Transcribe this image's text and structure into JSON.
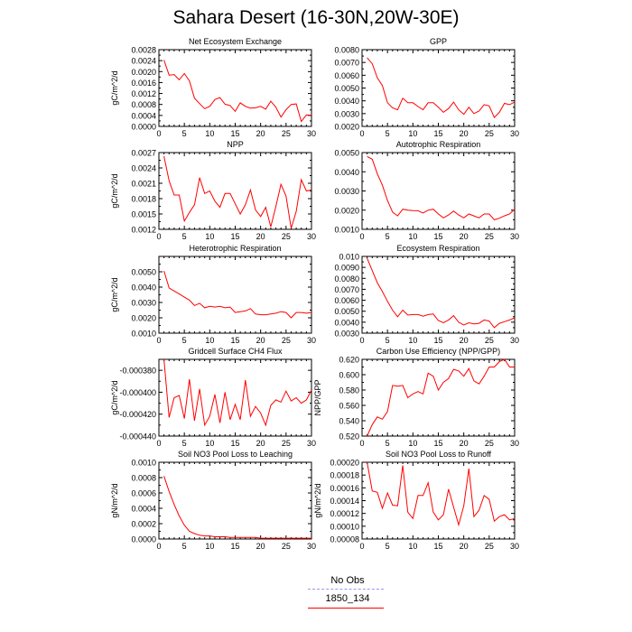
{
  "title": "Sahara Desert (16-30N,20W-30E)",
  "legend": {
    "items": [
      {
        "label": "No Obs",
        "color": "#9999ee",
        "style": "dashed"
      },
      {
        "label": "1850_134",
        "color": "#ff0000",
        "style": "solid"
      }
    ]
  },
  "chart_data": [
    {
      "type": "line",
      "title": "Net Ecosystem Exchange",
      "ylabel": "gC/m^2/d",
      "xlim": [
        0,
        30
      ],
      "xticks": [
        0,
        5,
        10,
        15,
        20,
        25,
        30
      ],
      "ylim": [
        0.0,
        0.0028
      ],
      "yticks": [
        0.0,
        0.0004,
        0.0008,
        0.0012,
        0.0016,
        0.002,
        0.0024,
        0.0028
      ],
      "ytick_labels": [
        "0.0000",
        "0.0004",
        "0.0008",
        "0.0012",
        "0.0016",
        "0.0020",
        "0.0024",
        "0.0028"
      ],
      "color": "#ff0000",
      "series": [
        {
          "name": "1850_134",
          "x": [
            1,
            2,
            3,
            4,
            5,
            6,
            7,
            8,
            9,
            10,
            11,
            12,
            13,
            14,
            15,
            16,
            17,
            18,
            19,
            20,
            21,
            22,
            23,
            24,
            25,
            26,
            27,
            28,
            29,
            30
          ],
          "values": [
            0.00242,
            0.00187,
            0.00189,
            0.0017,
            0.00193,
            0.00166,
            0.00103,
            0.00083,
            0.00065,
            0.00073,
            0.00098,
            0.00105,
            0.00081,
            0.00076,
            0.00055,
            0.00086,
            0.00073,
            0.00067,
            0.00068,
            0.00073,
            0.00063,
            0.00092,
            0.0007,
            0.00034,
            0.00061,
            0.0008,
            0.00082,
            0.00018,
            0.00042,
            0.00041
          ]
        }
      ]
    },
    {
      "type": "line",
      "title": "GPP",
      "ylabel": "",
      "xlim": [
        0,
        30
      ],
      "xticks": [
        0,
        5,
        10,
        15,
        20,
        25,
        30
      ],
      "ylim": [
        0.002,
        0.008
      ],
      "yticks": [
        0.002,
        0.003,
        0.004,
        0.005,
        0.006,
        0.007,
        0.008
      ],
      "ytick_labels": [
        "0.0020",
        "0.0030",
        "0.0040",
        "0.0050",
        "0.0060",
        "0.0070",
        "0.0080"
      ],
      "color": "#ff0000",
      "series": [
        {
          "name": "1850_134",
          "x": [
            1,
            2,
            3,
            4,
            5,
            6,
            7,
            8,
            9,
            10,
            11,
            12,
            13,
            14,
            15,
            16,
            17,
            18,
            19,
            20,
            21,
            22,
            23,
            24,
            25,
            26,
            27,
            28,
            29,
            30
          ],
          "values": [
            0.00737,
            0.0069,
            0.0058,
            0.0052,
            0.00385,
            0.00345,
            0.0033,
            0.0042,
            0.00385,
            0.00385,
            0.00355,
            0.0033,
            0.00385,
            0.00385,
            0.0035,
            0.0031,
            0.0034,
            0.0039,
            0.0033,
            0.00295,
            0.0035,
            0.003,
            0.0032,
            0.0037,
            0.0036,
            0.0027,
            0.0031,
            0.0038,
            0.0037,
            0.0039
          ]
        }
      ]
    },
    {
      "type": "line",
      "title": "NPP",
      "ylabel": "gC/m^2/d",
      "xlim": [
        0,
        30
      ],
      "xticks": [
        0,
        5,
        10,
        15,
        20,
        25,
        30
      ],
      "ylim": [
        0.0012,
        0.0027
      ],
      "yticks": [
        0.0012,
        0.0015,
        0.0018,
        0.0021,
        0.0024,
        0.0027
      ],
      "ytick_labels": [
        "0.0012",
        "0.0015",
        "0.0018",
        "0.0021",
        "0.0024",
        "0.0027"
      ],
      "color": "#ff0000",
      "series": [
        {
          "name": "1850_134",
          "x": [
            1,
            2,
            3,
            4,
            5,
            6,
            7,
            8,
            9,
            10,
            11,
            12,
            13,
            14,
            15,
            16,
            17,
            18,
            19,
            20,
            21,
            22,
            23,
            24,
            25,
            26,
            27,
            28,
            29,
            30
          ],
          "values": [
            0.00263,
            0.00215,
            0.00187,
            0.00187,
            0.00136,
            0.00153,
            0.00168,
            0.00221,
            0.0019,
            0.00195,
            0.00175,
            0.00163,
            0.0019,
            0.0019,
            0.0017,
            0.0015,
            0.00168,
            0.00197,
            0.00158,
            0.00145,
            0.00163,
            0.00125,
            0.00165,
            0.00208,
            0.00185,
            0.00122,
            0.00155,
            0.00217,
            0.00195,
            0.00197
          ]
        }
      ]
    },
    {
      "type": "line",
      "title": "Autotrophic Respiration",
      "ylabel": "",
      "xlim": [
        0,
        30
      ],
      "xticks": [
        0,
        5,
        10,
        15,
        20,
        25,
        30
      ],
      "ylim": [
        0.001,
        0.005
      ],
      "yticks": [
        0.001,
        0.002,
        0.003,
        0.004,
        0.005
      ],
      "ytick_labels": [
        "0.0010",
        "0.0020",
        "0.0030",
        "0.0040",
        "0.0050"
      ],
      "color": "#ff0000",
      "series": [
        {
          "name": "1850_134",
          "x": [
            1,
            2,
            3,
            4,
            5,
            6,
            7,
            8,
            9,
            10,
            11,
            12,
            13,
            14,
            15,
            16,
            17,
            18,
            19,
            20,
            21,
            22,
            23,
            24,
            25,
            26,
            27,
            28,
            29,
            30
          ],
          "values": [
            0.0048,
            0.00465,
            0.0039,
            0.0033,
            0.0025,
            0.0019,
            0.0017,
            0.00205,
            0.002,
            0.00198,
            0.00197,
            0.00185,
            0.002,
            0.00205,
            0.0018,
            0.0016,
            0.00175,
            0.00195,
            0.00175,
            0.0016,
            0.0018,
            0.0017,
            0.0016,
            0.0018,
            0.0018,
            0.0015,
            0.00158,
            0.0017,
            0.0018,
            0.00205
          ]
        }
      ]
    },
    {
      "type": "line",
      "title": "Heterotrophic Respiration",
      "ylabel": "gC/m^2/d",
      "xlim": [
        0,
        30
      ],
      "xticks": [
        0,
        5,
        10,
        15,
        20,
        25,
        30
      ],
      "ylim": [
        0.001,
        0.006
      ],
      "yticks": [
        0.001,
        0.002,
        0.003,
        0.004,
        0.005
      ],
      "ytick_labels": [
        "0.0010",
        "0.0020",
        "0.0030",
        "0.0040",
        "0.0050"
      ],
      "color": "#ff0000",
      "series": [
        {
          "name": "1850_134",
          "x": [
            1,
            2,
            3,
            4,
            5,
            6,
            7,
            8,
            9,
            10,
            11,
            12,
            13,
            14,
            15,
            16,
            17,
            18,
            19,
            20,
            21,
            22,
            23,
            24,
            25,
            26,
            27,
            28,
            29,
            30
          ],
          "values": [
            0.00505,
            0.00395,
            0.00375,
            0.00355,
            0.00335,
            0.00315,
            0.0028,
            0.00295,
            0.00265,
            0.00275,
            0.0027,
            0.00275,
            0.00265,
            0.0027,
            0.00235,
            0.0024,
            0.00245,
            0.0026,
            0.00225,
            0.0022,
            0.0022,
            0.00225,
            0.0023,
            0.0024,
            0.00235,
            0.002,
            0.00235,
            0.00235,
            0.0023,
            0.00235
          ]
        }
      ]
    },
    {
      "type": "line",
      "title": "Ecosystem Respiration",
      "ylabel": "",
      "xlim": [
        0,
        30
      ],
      "xticks": [
        0,
        5,
        10,
        15,
        20,
        25,
        30
      ],
      "ylim": [
        0.003,
        0.01
      ],
      "yticks": [
        0.003,
        0.004,
        0.005,
        0.006,
        0.007,
        0.008,
        0.009,
        0.01
      ],
      "ytick_labels": [
        "0.0030",
        "0.0040",
        "0.0050",
        "0.0060",
        "0.0070",
        "0.0080",
        "0.0090",
        "0.010"
      ],
      "color": "#ff0000",
      "series": [
        {
          "name": "1850_134",
          "x": [
            1,
            2,
            3,
            4,
            5,
            6,
            7,
            8,
            9,
            10,
            11,
            12,
            13,
            14,
            15,
            16,
            17,
            18,
            19,
            20,
            21,
            22,
            23,
            24,
            25,
            26,
            27,
            28,
            29,
            30
          ],
          "values": [
            0.00985,
            0.0087,
            0.0076,
            0.0068,
            0.0059,
            0.0051,
            0.0045,
            0.0051,
            0.00465,
            0.0047,
            0.0047,
            0.00455,
            0.0047,
            0.00475,
            0.00415,
            0.00395,
            0.0042,
            0.0046,
            0.004,
            0.00375,
            0.00395,
            0.00385,
            0.0039,
            0.0042,
            0.0041,
            0.0035,
            0.0039,
            0.00405,
            0.0042,
            0.0044
          ]
        }
      ]
    },
    {
      "type": "line",
      "title": "Gridcell Surface CH4 Flux",
      "ylabel": "gC/m^2/d",
      "xlim": [
        0,
        30
      ],
      "xticks": [
        0,
        5,
        10,
        15,
        20,
        25,
        30
      ],
      "ylim": [
        -0.00044,
        -0.00037
      ],
      "yticks": [
        -0.00044,
        -0.00042,
        -0.0004,
        -0.00038
      ],
      "ytick_labels": [
        "-0.000440",
        "-0.000420",
        "-0.000400",
        "-0.000380"
      ],
      "color": "#ff0000",
      "series": [
        {
          "name": "1850_134",
          "x": [
            1,
            2,
            3,
            4,
            5,
            6,
            7,
            8,
            9,
            10,
            11,
            12,
            13,
            14,
            15,
            16,
            17,
            18,
            19,
            20,
            21,
            22,
            23,
            24,
            25,
            26,
            27,
            28,
            29,
            30
          ],
          "values": [
            -0.00037,
            -0.000423,
            -0.000405,
            -0.000403,
            -0.000424,
            -0.000388,
            -0.000426,
            -0.000397,
            -0.00043,
            -0.000422,
            -0.000402,
            -0.000428,
            -0.0004,
            -0.000425,
            -0.000411,
            -0.000425,
            -0.000389,
            -0.000422,
            -0.000413,
            -0.000419,
            -0.00043,
            -0.000412,
            -0.000407,
            -0.000409,
            -0.000399,
            -0.000408,
            -0.000405,
            -0.00041,
            -0.000407,
            -0.000398
          ]
        }
      ]
    },
    {
      "type": "line",
      "title": "Carbon Use Efficiency (NPP/GPP)",
      "ylabel": "NPP/GPP",
      "xlim": [
        0,
        30
      ],
      "xticks": [
        0,
        5,
        10,
        15,
        20,
        25,
        30
      ],
      "ylim": [
        0.52,
        0.62
      ],
      "yticks": [
        0.52,
        0.54,
        0.56,
        0.58,
        0.6,
        0.62
      ],
      "ytick_labels": [
        "0.520",
        "0.540",
        "0.560",
        "0.580",
        "0.600",
        "0.620"
      ],
      "color": "#ff0000",
      "series": [
        {
          "name": "1850_134",
          "x": [
            1,
            2,
            3,
            4,
            5,
            6,
            7,
            8,
            9,
            10,
            11,
            12,
            13,
            14,
            15,
            16,
            17,
            18,
            19,
            20,
            21,
            22,
            23,
            24,
            25,
            26,
            27,
            28,
            29,
            30
          ],
          "values": [
            0.52,
            0.535,
            0.545,
            0.542,
            0.552,
            0.586,
            0.585,
            0.586,
            0.57,
            0.575,
            0.578,
            0.575,
            0.602,
            0.598,
            0.58,
            0.59,
            0.595,
            0.607,
            0.605,
            0.598,
            0.608,
            0.592,
            0.588,
            0.598,
            0.61,
            0.61,
            0.617,
            0.62,
            0.61,
            0.61
          ]
        }
      ]
    },
    {
      "type": "line",
      "title": "Soil NO3 Pool Loss to Leaching",
      "ylabel": "gN/m^2/d",
      "xlim": [
        0,
        30
      ],
      "xticks": [
        0,
        5,
        10,
        15,
        20,
        25,
        30
      ],
      "ylim": [
        0.0,
        0.001
      ],
      "yticks": [
        0.0,
        0.0002,
        0.0004,
        0.0006,
        0.0008,
        0.001
      ],
      "ytick_labels": [
        "0.0000",
        "0.0002",
        "0.0004",
        "0.0006",
        "0.0008",
        "0.0010"
      ],
      "color": "#ff0000",
      "series": [
        {
          "name": "1850_134",
          "x": [
            1,
            2,
            3,
            4,
            5,
            6,
            7,
            8,
            9,
            10,
            11,
            12,
            13,
            14,
            15,
            16,
            17,
            18,
            19,
            20,
            21,
            22,
            23,
            24,
            25,
            26,
            27,
            28,
            29,
            30
          ],
          "values": [
            0.00082,
            0.00062,
            0.00045,
            0.0003,
            0.00018,
            0.0001,
            7e-05,
            5e-05,
            4e-05,
            4e-05,
            3e-05,
            3e-05,
            3e-05,
            2e-05,
            2e-05,
            2e-05,
            2e-05,
            2e-05,
            2e-05,
            1e-05,
            1e-05,
            1e-05,
            1e-05,
            1e-05,
            1e-05,
            1e-05,
            1e-05,
            1e-05,
            1e-05,
            1e-05
          ]
        }
      ]
    },
    {
      "type": "line",
      "title": "Soil NO3 Pool Loss to Runoff",
      "ylabel": "gN/m^2/d",
      "xlim": [
        0,
        30
      ],
      "xticks": [
        0,
        5,
        10,
        15,
        20,
        25,
        30
      ],
      "ylim": [
        8e-05,
        0.0002
      ],
      "yticks": [
        8e-05,
        0.0001,
        0.00012,
        0.00014,
        0.00016,
        0.00018,
        0.0002
      ],
      "ytick_labels": [
        "0.00008",
        "0.00010",
        "0.00012",
        "0.00014",
        "0.00016",
        "0.00018",
        "0.00020"
      ],
      "color": "#ff0000",
      "series": [
        {
          "name": "1850_134",
          "x": [
            1,
            2,
            3,
            4,
            5,
            6,
            7,
            8,
            9,
            10,
            11,
            12,
            13,
            14,
            15,
            16,
            17,
            18,
            19,
            20,
            21,
            22,
            23,
            24,
            25,
            26,
            27,
            28,
            29,
            30
          ],
          "values": [
            0.0002,
            0.000155,
            0.000153,
            0.000128,
            0.000152,
            0.000133,
            0.000132,
            0.000195,
            0.000122,
            0.000112,
            0.000148,
            0.000148,
            0.000168,
            0.000122,
            0.00011,
            0.000118,
            0.000158,
            0.00013,
            0.000102,
            0.000132,
            0.00019,
            0.000115,
            0.000125,
            0.000148,
            0.000142,
            0.000108,
            0.000115,
            0.000118,
            0.00011,
            0.000112
          ]
        }
      ]
    }
  ]
}
